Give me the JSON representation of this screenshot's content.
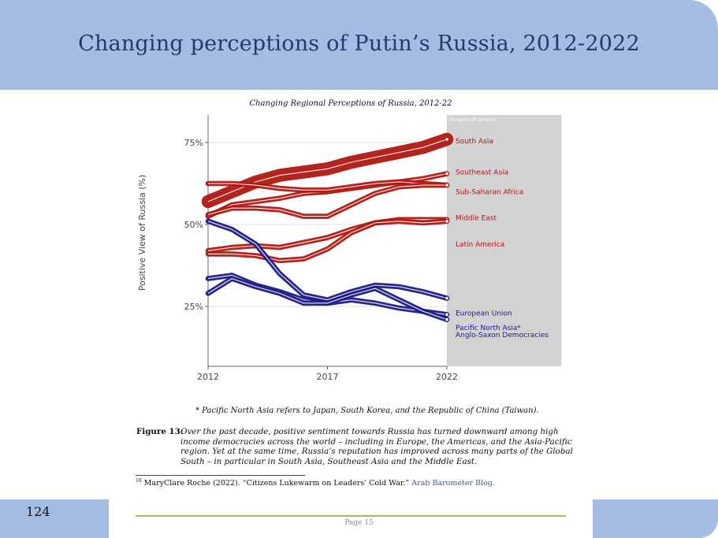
{
  "slide": {
    "title": "Changing perceptions of Putin’s Russia, 2012-2022",
    "number": "124"
  },
  "document": {
    "footnote_star": "* Pacific North Asia refers to Japan, South Korea, and the Republic of China (Taiwan).",
    "figure_label": "Figure 13:",
    "figure_caption": "Over the past decade, positive sentiment towards Russia has turned downward among high income democracies across the world – including in Europe, the Americas, and the Asia-Pacific region. Yet at the same time, Russia’s reputation has improved across many parts of the Global South – in particular in South Asia, Southeast Asia and the Middle East.",
    "citation_number": "10",
    "citation_text": "MaryClare Roche (2022). “Citizens Lukewarm on Leaders’ Cold War.”",
    "citation_source": "Arab Barometer Blog.",
    "page_label": "Page 15"
  },
  "chart_data": {
    "type": "line",
    "title": "Changing Regional Perceptions of Russia, 2012-22",
    "xlabel": "",
    "ylabel": "Positive View of Russia (%)",
    "xlim": [
      2012,
      2022
    ],
    "ylim": [
      15,
      80
    ],
    "x_ticks": [
      2012,
      2017,
      2022
    ],
    "x_tick_labels": [
      "2012",
      "2017",
      "2022"
    ],
    "y_ticks": [
      25,
      50,
      75
    ],
    "y_tick_labels": [
      "25%",
      "50%",
      "75%"
    ],
    "shaded_region": {
      "x_start": 2022,
      "x_end": 2026.8,
      "label": "Invasion of Ukraine"
    },
    "colors": {
      "global_south": "#b01812",
      "high_income": "#1c1a85",
      "shade": "#d2d2d2"
    },
    "series": [
      {
        "name": "South Asia",
        "group": "global_south",
        "width": 7.5,
        "x": [
          2012,
          2013,
          2014,
          2015,
          2016,
          2017,
          2018,
          2019,
          2020,
          2021,
          2022
        ],
        "y": [
          57,
          60,
          63,
          65,
          66,
          67,
          69,
          70.5,
          72,
          73.5,
          76
        ]
      },
      {
        "name": "Southeast Asia",
        "group": "global_south",
        "width": 3,
        "x": [
          2012,
          2013,
          2014,
          2015,
          2016,
          2017,
          2018,
          2019,
          2020,
          2021,
          2022
        ],
        "y": [
          52.5,
          56,
          57,
          58,
          59.5,
          60,
          61,
          62,
          63,
          64,
          65.5
        ]
      },
      {
        "name": "Sub-Saharan Africa",
        "group": "global_south",
        "width": 3,
        "x": [
          2012,
          2013,
          2014,
          2015,
          2016,
          2017,
          2018,
          2019,
          2020,
          2021,
          2022
        ],
        "y": [
          62.5,
          62.5,
          62,
          61,
          60.5,
          60.5,
          61.5,
          62.5,
          63,
          62.5,
          62
        ]
      },
      {
        "name": "Middle East",
        "group": "global_south",
        "width": 3,
        "x": [
          2012,
          2013,
          2014,
          2015,
          2016,
          2017,
          2018,
          2019,
          2020,
          2021,
          2022
        ],
        "y": [
          53,
          55,
          55,
          54.5,
          52.5,
          52.5,
          56,
          59.5,
          61.5,
          62,
          62
        ]
      },
      {
        "name": "Latin America",
        "group": "global_south",
        "width": 3,
        "x": [
          2012,
          2013,
          2014,
          2015,
          2016,
          2017,
          2018,
          2019,
          2020,
          2021,
          2022
        ],
        "y": [
          42,
          43,
          43.5,
          43,
          44.5,
          46,
          48.5,
          50.5,
          51.5,
          51.5,
          51.5
        ]
      },
      {
        "name": "Latin America (lower band)",
        "group": "global_south",
        "width": 3,
        "x": [
          2012,
          2013,
          2014,
          2015,
          2016,
          2017,
          2018,
          2019,
          2020,
          2021,
          2022
        ],
        "y": [
          41,
          41,
          40.5,
          39,
          39.5,
          42.5,
          47.5,
          50.5,
          51,
          50.5,
          51
        ]
      },
      {
        "name": "European Union",
        "group": "high_income",
        "width": 3,
        "x": [
          2012,
          2013,
          2014,
          2015,
          2016,
          2017,
          2018,
          2019,
          2020,
          2021,
          2022
        ],
        "y": [
          51,
          48.5,
          44,
          35,
          28.5,
          27,
          29.5,
          31.5,
          31,
          29.5,
          27.5
        ]
      },
      {
        "name": "Pacific North Asia*",
        "group": "high_income",
        "width": 3,
        "x": [
          2012,
          2013,
          2014,
          2015,
          2016,
          2017,
          2018,
          2019,
          2020,
          2021,
          2022
        ],
        "y": [
          33.5,
          34.5,
          31.5,
          29.5,
          27,
          26,
          27,
          26,
          24.5,
          23.5,
          22.5
        ]
      },
      {
        "name": "Anglo-Saxon Democracies",
        "group": "high_income",
        "width": 3,
        "x": [
          2012,
          2013,
          2014,
          2015,
          2016,
          2017,
          2018,
          2019,
          2020,
          2021,
          2022
        ],
        "y": [
          29,
          33.5,
          31,
          29,
          26,
          26,
          28.5,
          30.5,
          27,
          23.5,
          21
        ]
      }
    ],
    "end_labels": [
      {
        "text": "South Asia",
        "y": 75.5,
        "group": "global_south"
      },
      {
        "text": "Southeast Asia",
        "y": 66,
        "group": "global_south"
      },
      {
        "text": "Sub-Saharan Africa",
        "y": 60,
        "group": "global_south"
      },
      {
        "text": "Middle East",
        "y": 52,
        "group": "global_south"
      },
      {
        "text": "Latin America",
        "y": 44,
        "group": "global_south"
      },
      {
        "text": "European Union",
        "y": 23,
        "group": "high_income"
      },
      {
        "text": "Pacific North Asia*",
        "y": 18.5,
        "group": "high_income"
      },
      {
        "text": "Anglo-Saxon Democracies",
        "y": 16.3,
        "group": "high_income"
      }
    ]
  }
}
